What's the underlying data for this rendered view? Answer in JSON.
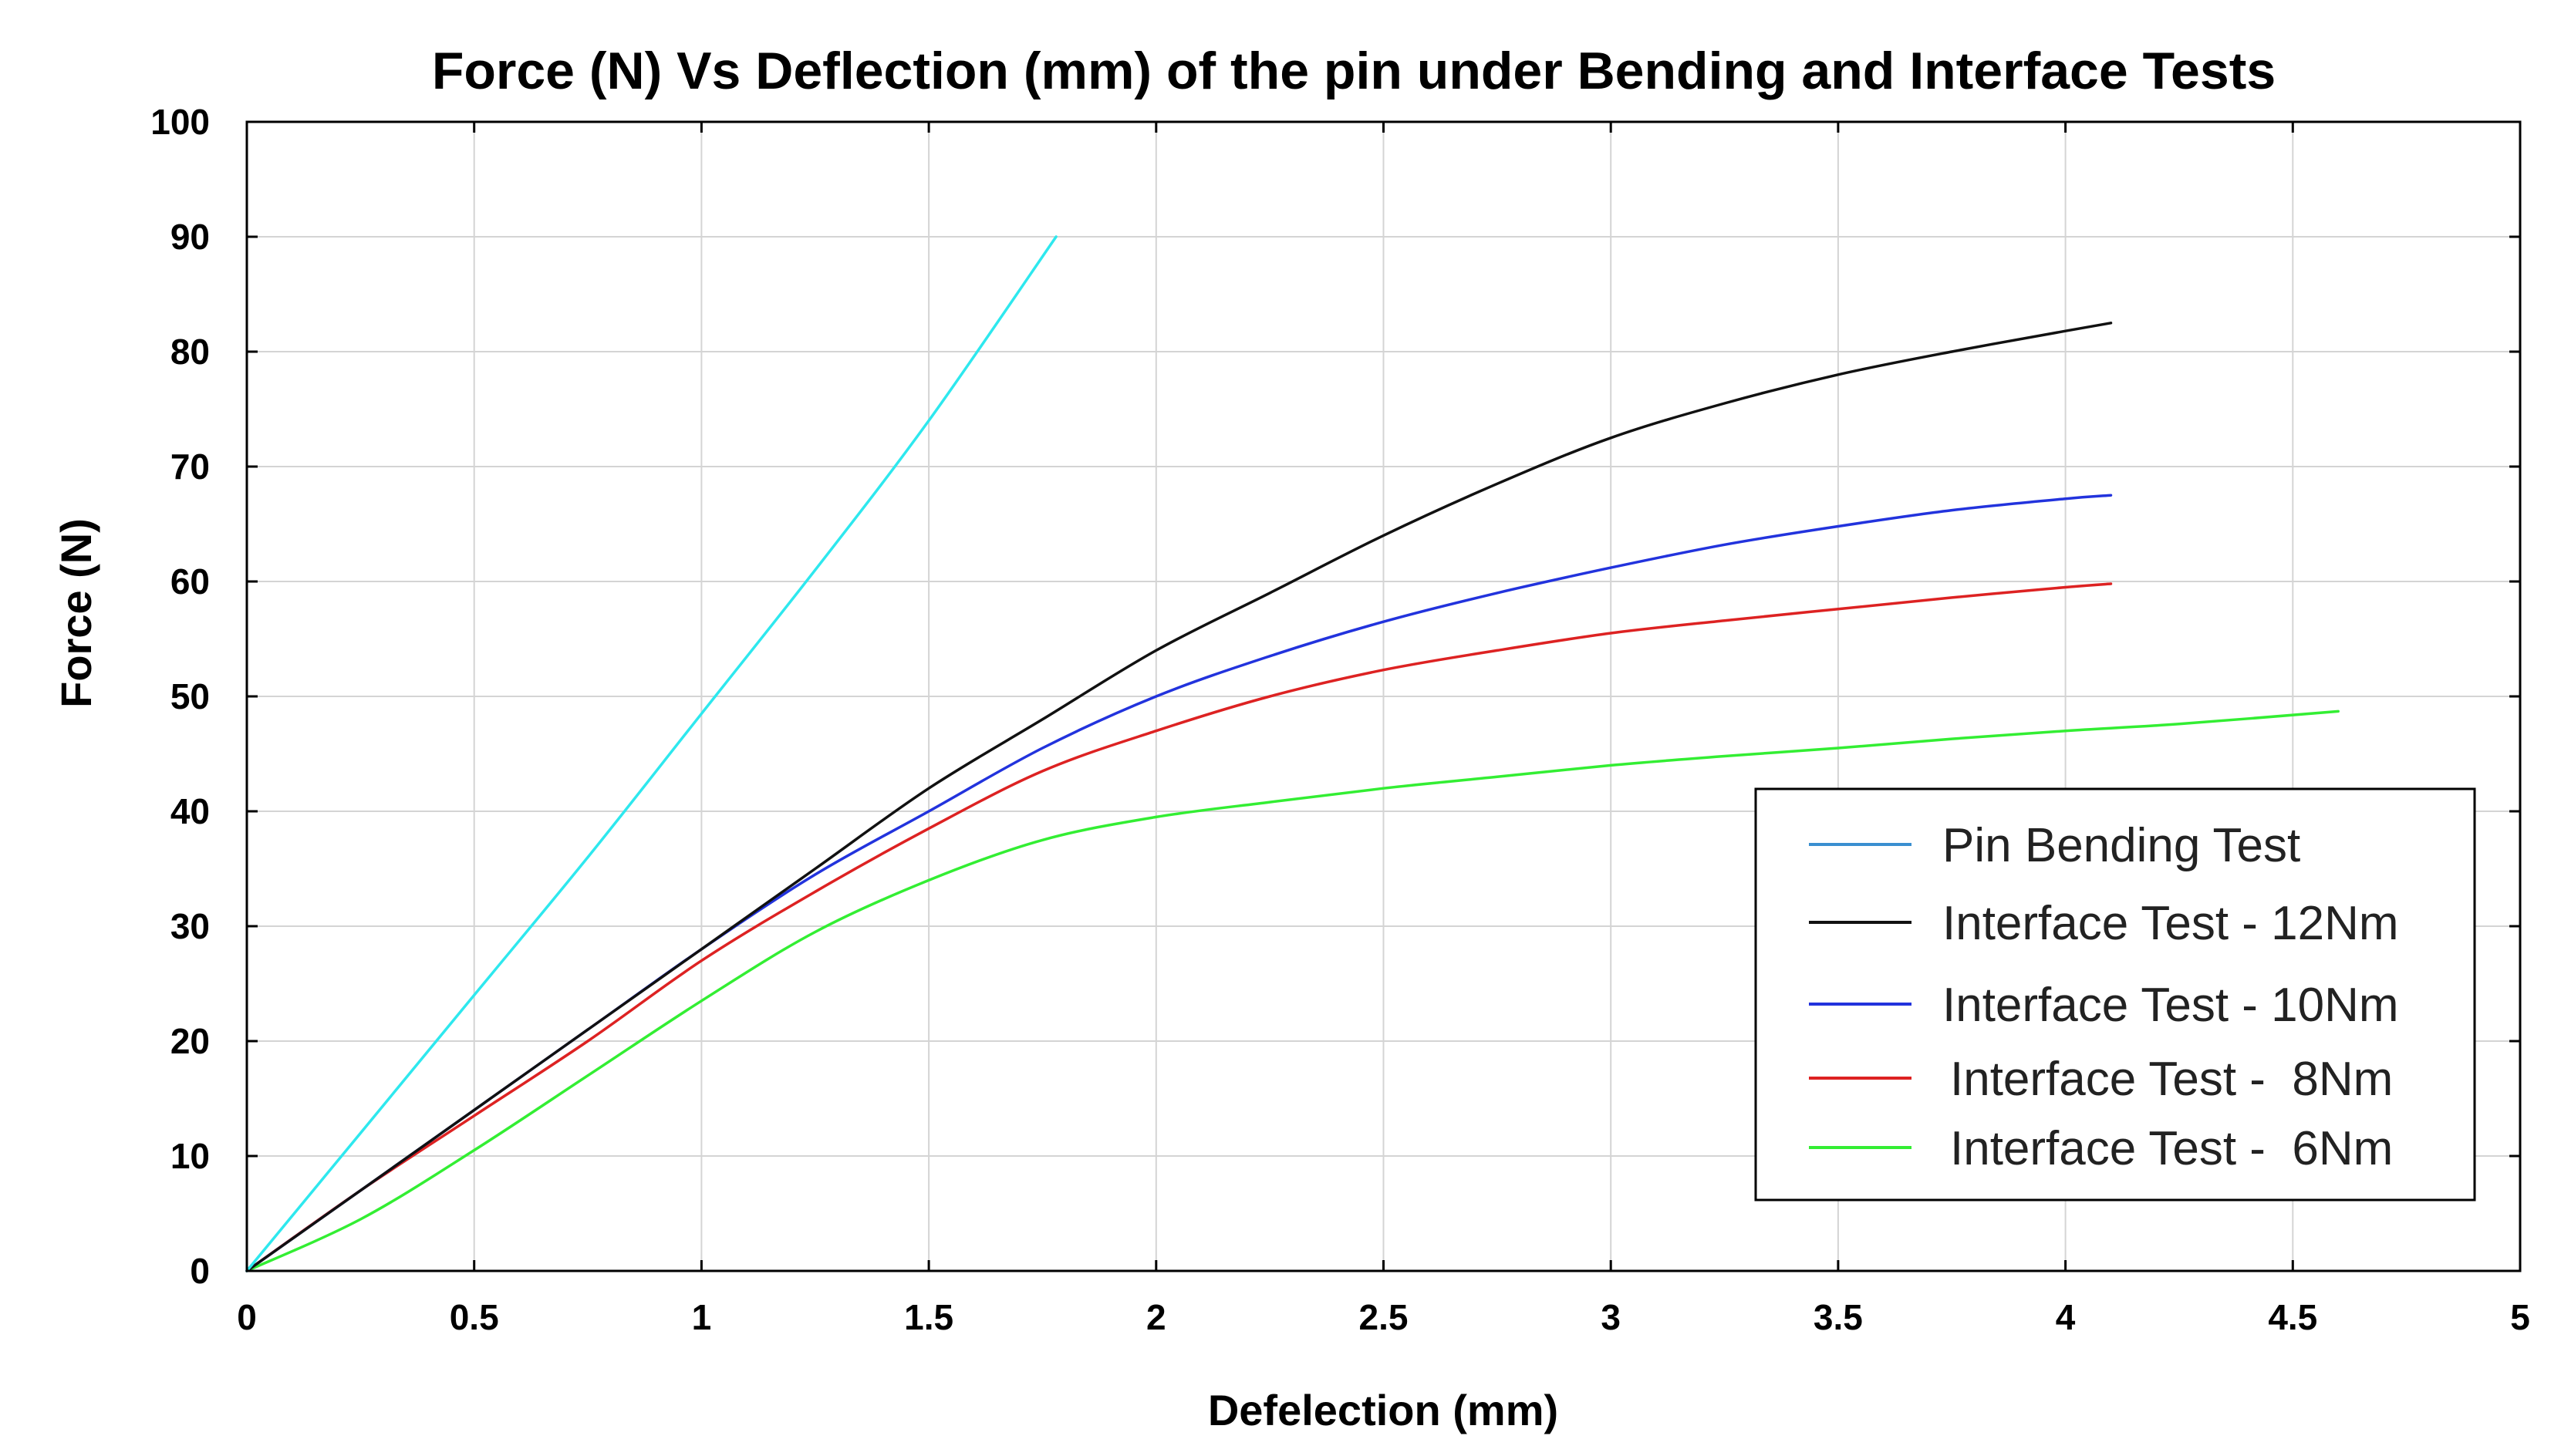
{
  "chart_data": {
    "type": "line",
    "title": "Force (N) Vs Deflection (mm) of the pin under Bending and Interface Tests",
    "xlabel": "Defelection (mm)",
    "ylabel": "Force (N)",
    "xlim": [
      0,
      5
    ],
    "ylim": [
      0,
      100
    ],
    "xticks": [
      0,
      0.5,
      1,
      1.5,
      2,
      2.5,
      3,
      3.5,
      4,
      4.5,
      5
    ],
    "xtick_labels": [
      "0",
      "0.5",
      "1",
      "1.5",
      "2",
      "2.5",
      "3",
      "3.5",
      "4",
      "4.5",
      "5"
    ],
    "yticks": [
      0,
      10,
      20,
      30,
      40,
      50,
      60,
      70,
      80,
      90,
      100
    ],
    "ytick_labels": [
      "0",
      "10",
      "20",
      "30",
      "40",
      "50",
      "60",
      "70",
      "80",
      "90",
      "100"
    ],
    "grid": true,
    "legend_position": "lower-right",
    "series": [
      {
        "name": "Pin Bending Test",
        "legend_label": "Pin Bending Test",
        "color": "#2ee8ee",
        "legend_color": "#3a8fd0",
        "x": [
          0,
          0.25,
          0.5,
          0.75,
          1.0,
          1.25,
          1.5,
          1.78
        ],
        "y": [
          0,
          12,
          24,
          36,
          48.5,
          61,
          74,
          90
        ]
      },
      {
        "name": "Interface Test - 12Nm",
        "legend_label": "Interface Test - 12Nm",
        "color": "#111111",
        "legend_color": "#111111",
        "x": [
          0,
          0.25,
          0.5,
          0.75,
          1.0,
          1.25,
          1.5,
          1.75,
          2.0,
          2.25,
          2.5,
          2.75,
          3.0,
          3.25,
          3.5,
          3.75,
          4.0,
          4.1
        ],
        "y": [
          0,
          7,
          14,
          21,
          28,
          35,
          42,
          48,
          54,
          59,
          64,
          68.5,
          72.5,
          75.5,
          78,
          80,
          81.8,
          82.5
        ]
      },
      {
        "name": "Interface Test - 10Nm",
        "legend_label": "Interface Test - 10Nm",
        "color": "#2233dd",
        "legend_color": "#2233dd",
        "x": [
          0,
          0.25,
          0.5,
          0.75,
          1.0,
          1.25,
          1.5,
          1.75,
          2.0,
          2.25,
          2.5,
          2.75,
          3.0,
          3.25,
          3.5,
          3.75,
          4.0,
          4.1
        ],
        "y": [
          0,
          7,
          14,
          21,
          28,
          34.5,
          40,
          45.5,
          50,
          53.5,
          56.5,
          59,
          61.2,
          63.2,
          64.8,
          66.2,
          67.2,
          67.5
        ]
      },
      {
        "name": "Interface Test - 8Nm",
        "legend_label": "Interface Test -  8Nm",
        "color": "#dd2222",
        "legend_color": "#dd2222",
        "x": [
          0,
          0.25,
          0.5,
          0.75,
          1.0,
          1.25,
          1.5,
          1.75,
          2.0,
          2.25,
          2.5,
          2.75,
          3.0,
          3.25,
          3.5,
          3.75,
          4.0,
          4.1
        ],
        "y": [
          0,
          7,
          13.5,
          20,
          27,
          33,
          38.5,
          43.5,
          47,
          50,
          52.3,
          54,
          55.5,
          56.6,
          57.6,
          58.6,
          59.5,
          59.8
        ]
      },
      {
        "name": "Interface Test - 6Nm",
        "legend_label": "Interface Test -  6Nm",
        "color": "#33ee33",
        "legend_color": "#33ee33",
        "x": [
          0,
          0.25,
          0.5,
          0.75,
          1.0,
          1.25,
          1.5,
          1.75,
          2.0,
          2.25,
          2.5,
          2.75,
          3.0,
          3.25,
          3.5,
          3.75,
          4.0,
          4.25,
          4.6
        ],
        "y": [
          0,
          4.5,
          10.5,
          17,
          23.5,
          29.5,
          34,
          37.5,
          39.5,
          40.8,
          42,
          43,
          44,
          44.8,
          45.5,
          46.3,
          47,
          47.6,
          48.7
        ]
      }
    ]
  }
}
